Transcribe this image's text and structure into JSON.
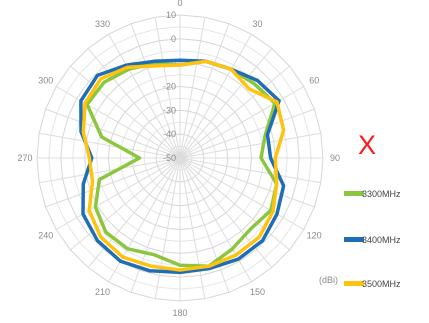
{
  "annotation": {
    "cross_mark": "X",
    "color": "#ff1a1a"
  },
  "chart_data": {
    "type": "polar-line",
    "radial_unit": "(dBi)",
    "radial_range": [
      -50,
      10
    ],
    "radial_ticks": [
      10,
      0,
      -10,
      -20,
      -30,
      -40,
      -50
    ],
    "radial_tick_labels": [
      "10",
      "0",
      "-10",
      "-20",
      "-30",
      "-40",
      "-50"
    ],
    "angle_ticks": [
      0,
      30,
      60,
      90,
      120,
      150,
      180,
      210,
      240,
      270,
      300,
      330
    ],
    "angle_tick_labels": [
      "0",
      "30",
      "60",
      "90",
      "120",
      "150",
      "180",
      "210",
      "240",
      "270",
      "300",
      "330"
    ],
    "grid": true,
    "legend_position": "right",
    "angles": [
      0,
      15,
      30,
      45,
      60,
      75,
      90,
      105,
      120,
      135,
      150,
      165,
      180,
      195,
      210,
      225,
      240,
      255,
      270,
      285,
      300,
      315,
      330,
      345
    ],
    "series": [
      {
        "name": "3300MHz",
        "color": "#8cc63f",
        "values": [
          -11,
          -8,
          -7,
          -6,
          -4,
          -13,
          -16,
          -8,
          -6,
          -8,
          -6,
          -3,
          -5,
          -8,
          -6,
          -6,
          -9,
          -15,
          -33,
          -16,
          -5,
          -5,
          -7,
          -9
        ]
      },
      {
        "name": "3400MHz",
        "color": "#1f6eb5",
        "values": [
          -9,
          -8,
          -7,
          -4,
          -2,
          -12,
          -12,
          -5,
          -3,
          -1,
          -1,
          -2,
          -2,
          -1,
          0,
          -1,
          -3,
          -8,
          -13,
          -7,
          -2,
          -1,
          -5,
          -8
        ]
      },
      {
        "name": "3500MHz",
        "color": "#ffc20e",
        "values": [
          -11,
          -8,
          -7,
          -9,
          -3,
          -5,
          -10,
          -8,
          -5,
          -3,
          -3,
          -3,
          -3,
          -3,
          -2,
          -3,
          -6,
          -12,
          -12,
          -8,
          -4,
          -3,
          -6,
          -10
        ]
      }
    ]
  }
}
